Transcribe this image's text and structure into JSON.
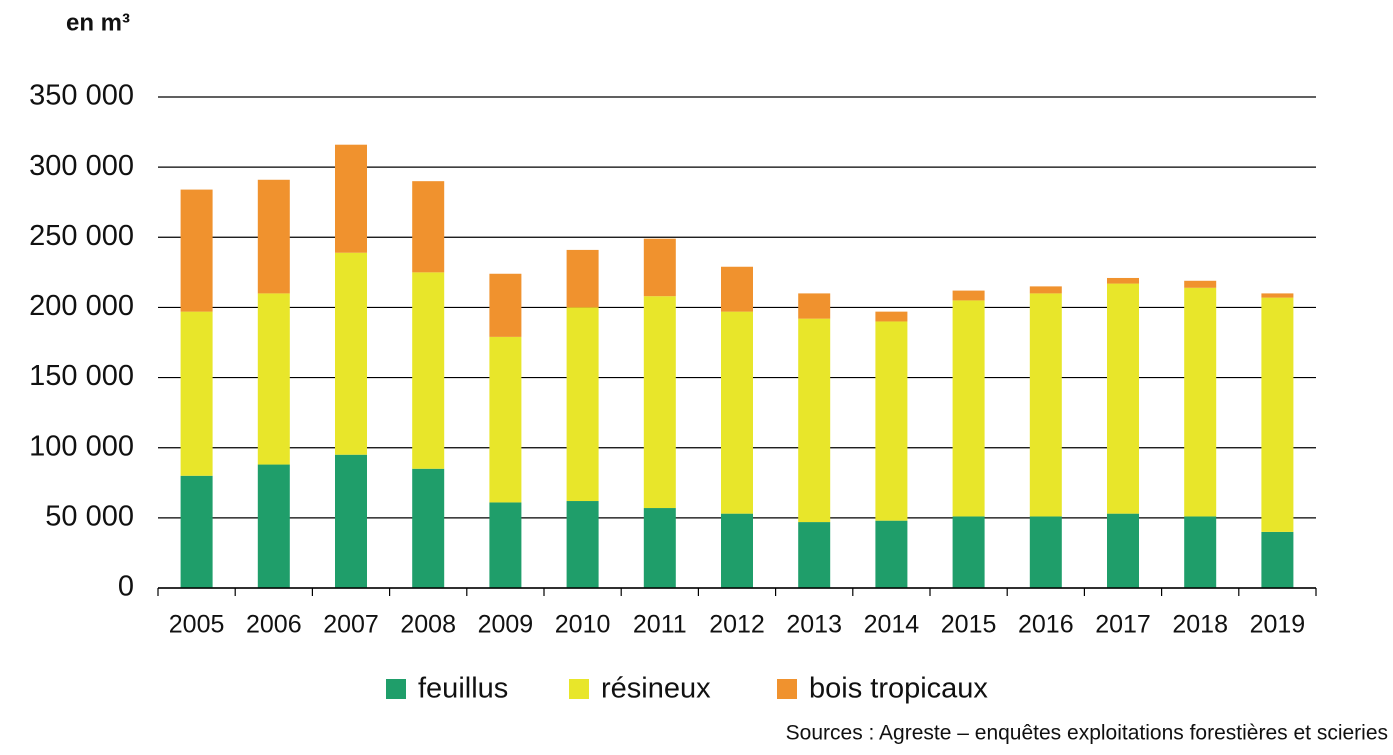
{
  "chart_data": {
    "type": "stacked_bar",
    "y_axis_label": "en m³",
    "source": "Sources : Agreste – enquêtes exploitations forestières et scieries",
    "categories": [
      "2005",
      "2006",
      "2007",
      "2008",
      "2009",
      "2010",
      "2011",
      "2012",
      "2013",
      "2014",
      "2015",
      "2016",
      "2017",
      "2018",
      "2019"
    ],
    "series": [
      {
        "name": "feuillus",
        "color": "#1f9e6a",
        "values": [
          80000,
          88000,
          95000,
          85000,
          61000,
          62000,
          57000,
          53000,
          47000,
          48000,
          51000,
          51000,
          53000,
          51000,
          40000
        ]
      },
      {
        "name": "résineux",
        "color": "#e8e62a",
        "values": [
          117000,
          122000,
          144000,
          140000,
          118000,
          138000,
          151000,
          144000,
          145000,
          142000,
          154000,
          159000,
          164000,
          163000,
          167000
        ]
      },
      {
        "name": "bois tropicaux",
        "color": "#f0922e",
        "values": [
          87000,
          81000,
          77000,
          65000,
          45000,
          41000,
          41000,
          32000,
          18000,
          7000,
          7000,
          5000,
          4000,
          5000,
          3000
        ]
      }
    ],
    "ylim": [
      0,
      350000
    ],
    "yticks": [
      0,
      {
        "value": 50000,
        "label": "50 000"
      },
      {
        "value": 100000,
        "label": "100 000"
      },
      {
        "value": 150000,
        "label": "150 000"
      },
      {
        "value": 200000,
        "label": "200 000"
      },
      {
        "value": 250000,
        "label": "250 000"
      },
      {
        "value": 300000,
        "label": "300 000"
      },
      {
        "value": 350000,
        "label": "350 000"
      }
    ],
    "grid": true,
    "legend": "bottom"
  }
}
